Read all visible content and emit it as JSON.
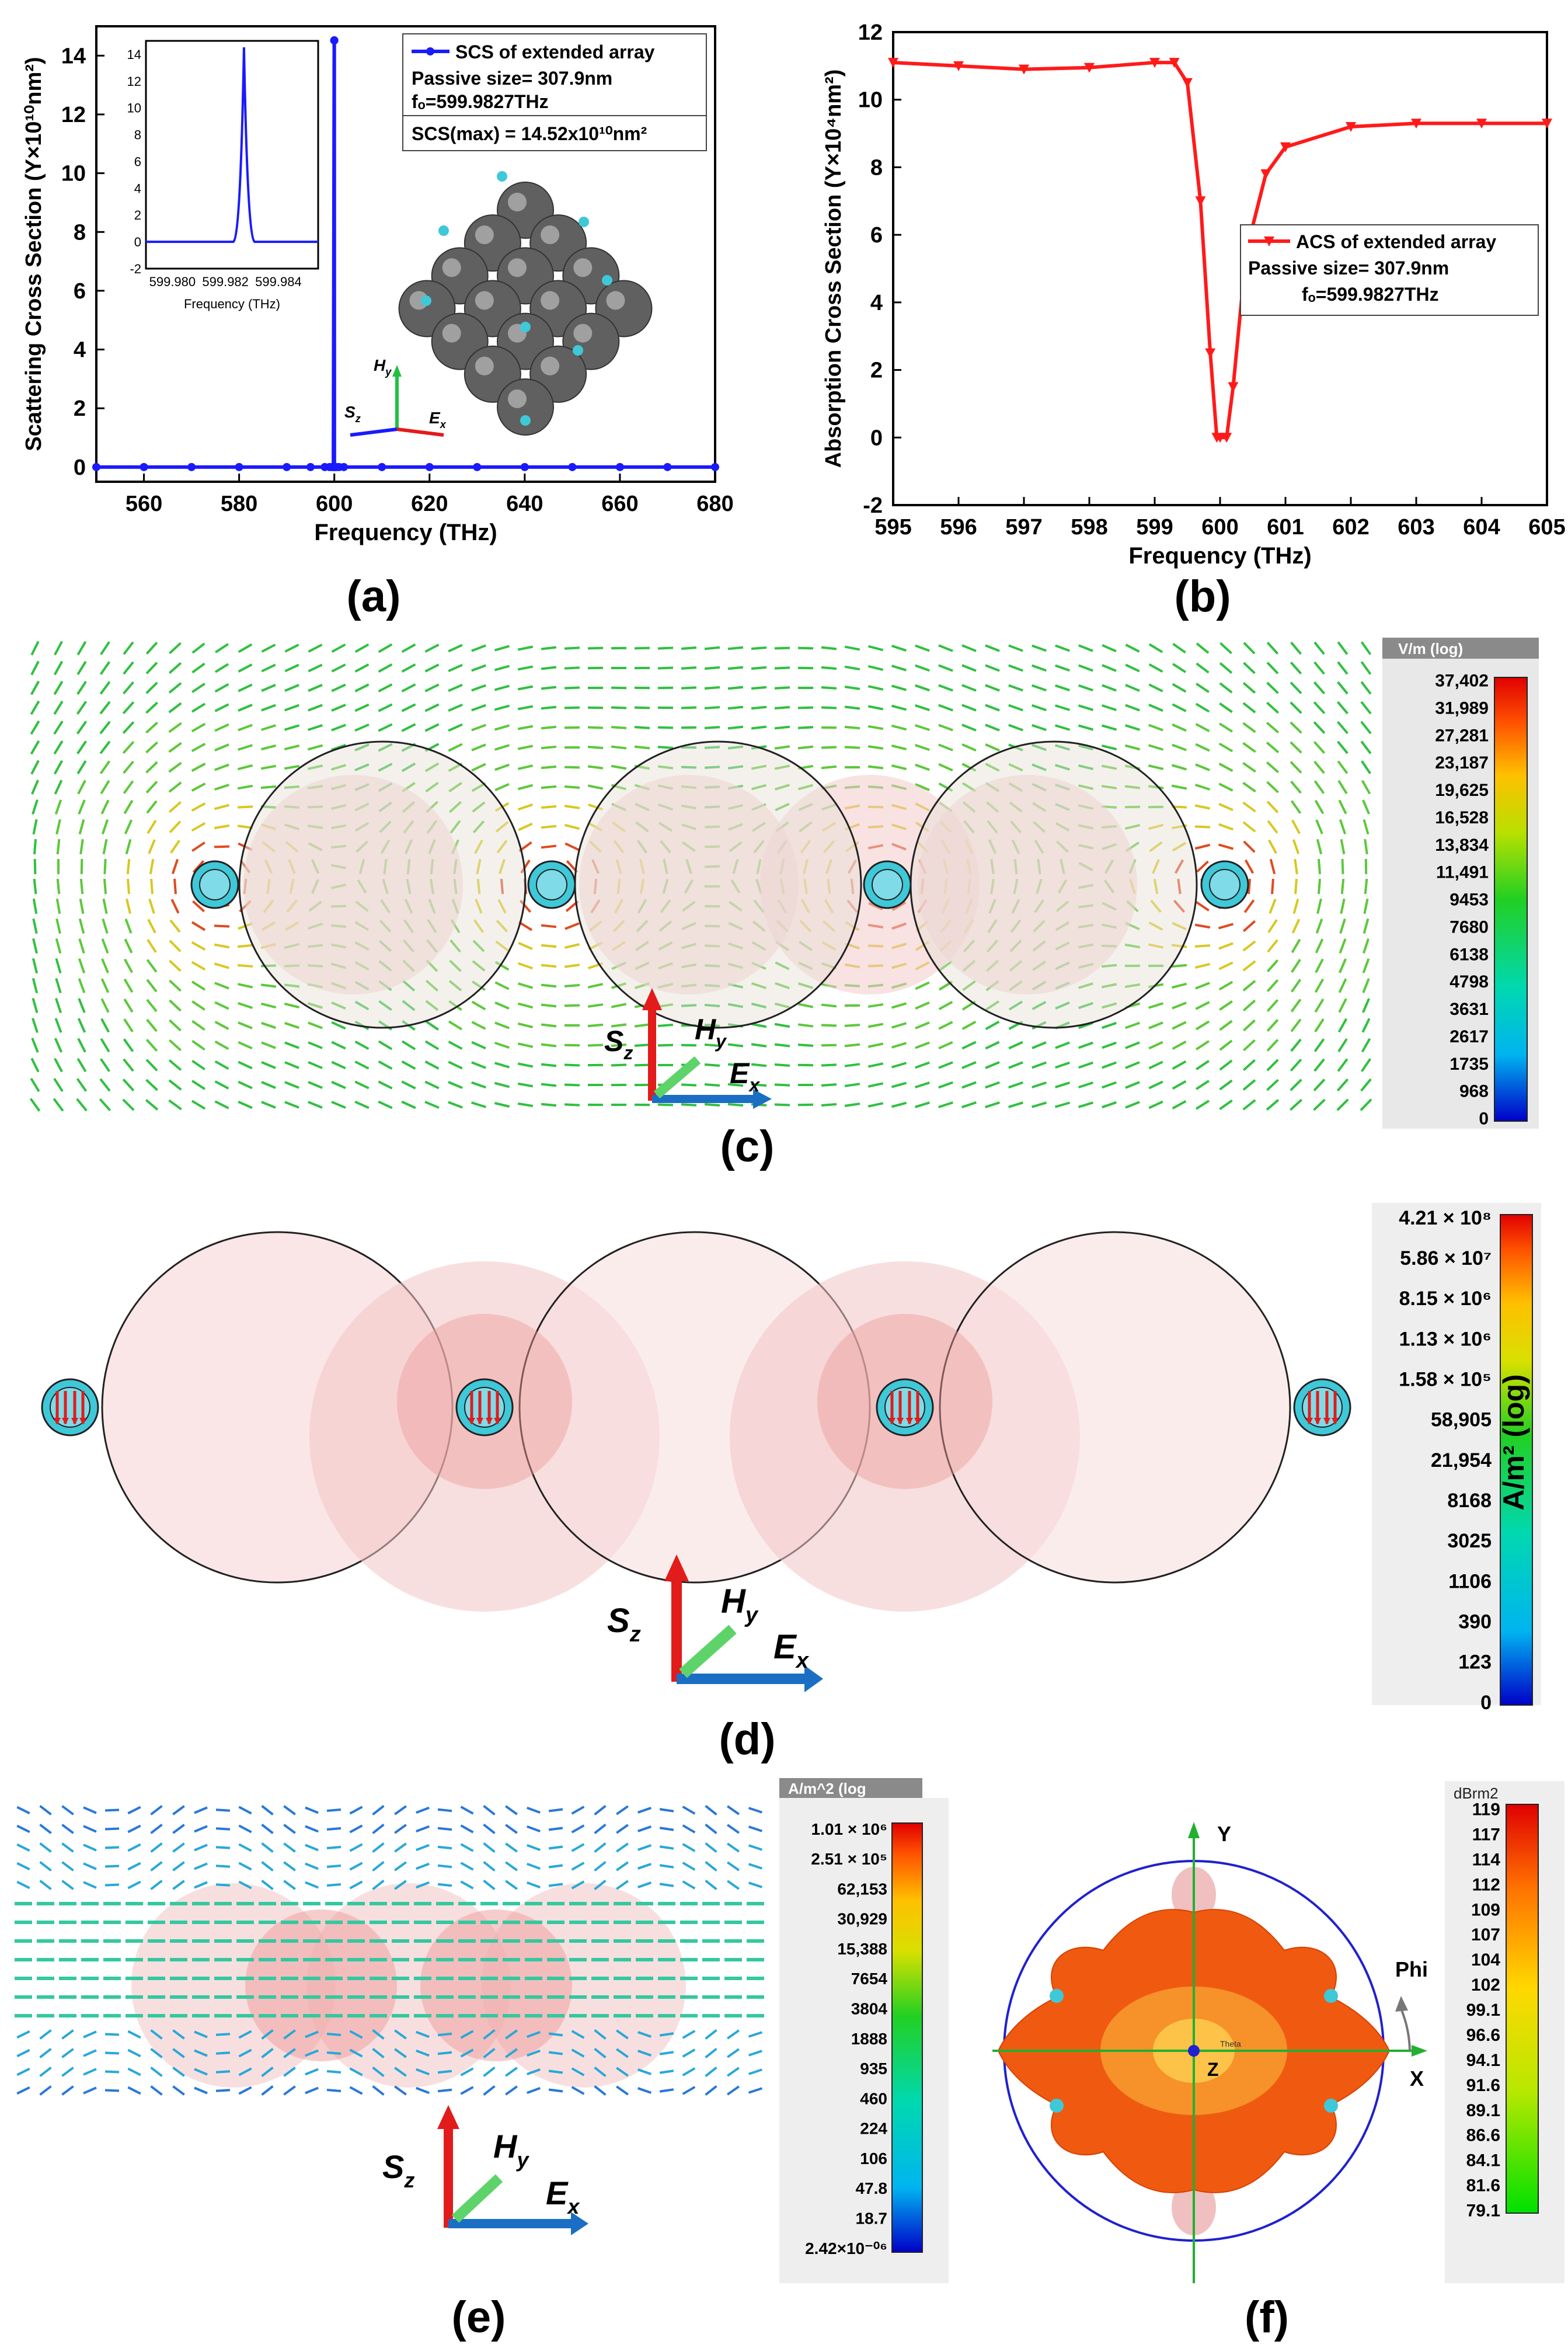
{
  "panel_labels": {
    "a": "(a)",
    "b": "(b)",
    "c": "(c)",
    "d": "(d)",
    "e": "(e)",
    "f": "(f)"
  },
  "axis_symbols": {
    "s": "S",
    "z": "z",
    "h": "H",
    "y": "y",
    "e": "E",
    "x": "x"
  },
  "colors": {
    "scs": "#1a1aff",
    "acs": "#ff1a1a",
    "sphere": "#f6c9c9",
    "cyan": "#3fc8d8",
    "arrow_green": "#22c040"
  },
  "chart_data": [
    {
      "id": "a",
      "type": "line",
      "title": "",
      "xlabel": "Frequency (THz)",
      "ylabel": "Scattering Cross Section (Y×10¹⁰nm²)",
      "xlim": [
        550,
        680
      ],
      "ylim": [
        -0.5,
        15
      ],
      "xticks": [
        560,
        580,
        600,
        620,
        640,
        660,
        680
      ],
      "yticks": [
        0,
        2,
        4,
        6,
        8,
        10,
        12,
        14
      ],
      "series": [
        {
          "name": "SCS of extended array",
          "x": [
            550,
            560,
            570,
            580,
            590,
            595,
            598,
            599,
            599.5,
            599.8,
            599.98,
            600,
            600.02,
            600.2,
            600.5,
            601,
            602,
            610,
            620,
            630,
            640,
            650,
            660,
            670,
            680
          ],
          "values": [
            0,
            0,
            0,
            0,
            0,
            0,
            0,
            0,
            0,
            0,
            14.52,
            14.52,
            0,
            0,
            0,
            0,
            0,
            0,
            0,
            0,
            0,
            0,
            0,
            0,
            0
          ]
        }
      ],
      "legend": "SCS of extended array",
      "annotations": [
        "Passive size= 307.9nm",
        "fₒ=599.9827THz",
        "SCS(max) = 14.52x10¹⁰nm²"
      ],
      "inset": {
        "xlabel": "Frequency (THz)",
        "xticks": [
          "599.980",
          "599.982",
          "599.984"
        ],
        "yticks": [
          -2,
          0,
          2,
          4,
          6,
          8,
          10,
          12,
          14
        ],
        "xlim": [
          599.979,
          599.9855
        ],
        "ylim": [
          -2,
          15
        ],
        "peak_x": 599.9827,
        "peak_y": 14.52
      }
    },
    {
      "id": "b",
      "type": "line",
      "title": "",
      "xlabel": "Frequency (THz)",
      "ylabel": "Absorption Cross Section (Y×10⁴nm²)",
      "xlim": [
        595,
        605
      ],
      "ylim": [
        -2,
        12
      ],
      "xticks": [
        595,
        596,
        597,
        598,
        599,
        600,
        601,
        602,
        603,
        604,
        605
      ],
      "yticks": [
        -2,
        0,
        2,
        4,
        6,
        8,
        10,
        12
      ],
      "series": [
        {
          "name": "ACS of extended array",
          "x": [
            595,
            596,
            597,
            598,
            599,
            599.3,
            599.5,
            599.7,
            599.85,
            599.95,
            600,
            600.1,
            600.2,
            600.4,
            600.7,
            601,
            602,
            603,
            604,
            605
          ],
          "values": [
            11.1,
            11.0,
            10.9,
            10.95,
            11.1,
            11.1,
            10.5,
            7.0,
            2.5,
            0,
            0,
            0,
            1.5,
            5.5,
            7.8,
            8.6,
            9.2,
            9.3,
            9.3,
            9.3
          ]
        }
      ],
      "legend": "ACS of extended array",
      "annotations": [
        "Passive size= 307.9nm",
        "fₒ=599.9827THz"
      ]
    }
  ],
  "colorbars": {
    "c": {
      "header": "V/m (log)",
      "ticks": [
        "37,402",
        "31,989",
        "27,281",
        "23,187",
        "19,625",
        "16,528",
        "13,834",
        "11,491",
        "9453",
        "7680",
        "6138",
        "4798",
        "3631",
        "2617",
        "1735",
        "968",
        "0"
      ]
    },
    "d": {
      "title": "A/m² (log)",
      "ticks": [
        "4.21 × 10⁸",
        "5.86 × 10⁷",
        "8.15 × 10⁶",
        "1.13 × 10⁶",
        "1.58 × 10⁵",
        "58,905",
        "21,954",
        "8168",
        "3025",
        "1106",
        "390",
        "123",
        "0"
      ]
    },
    "e": {
      "header": "A/m^2 (log",
      "ticks": [
        "1.01 × 10⁶",
        "2.51 × 10⁵",
        "62,153",
        "30,929",
        "15,388",
        "7654",
        "3804",
        "1888",
        "935",
        "460",
        "224",
        "106",
        "47.8",
        "18.7",
        "2.42×10⁻⁰⁶"
      ]
    },
    "f": {
      "header": "dBrm2",
      "ticks": [
        "119",
        "117",
        "114",
        "112",
        "109",
        "107",
        "104",
        "102",
        "99.1",
        "96.6",
        "94.1",
        "91.6",
        "89.1",
        "86.6",
        "84.1",
        "81.6",
        "79.1"
      ]
    }
  },
  "panel_f": {
    "y_axis": "Y",
    "x_axis": "X",
    "z_axis": "Z",
    "phi": "Phi",
    "theta": "Theta"
  }
}
